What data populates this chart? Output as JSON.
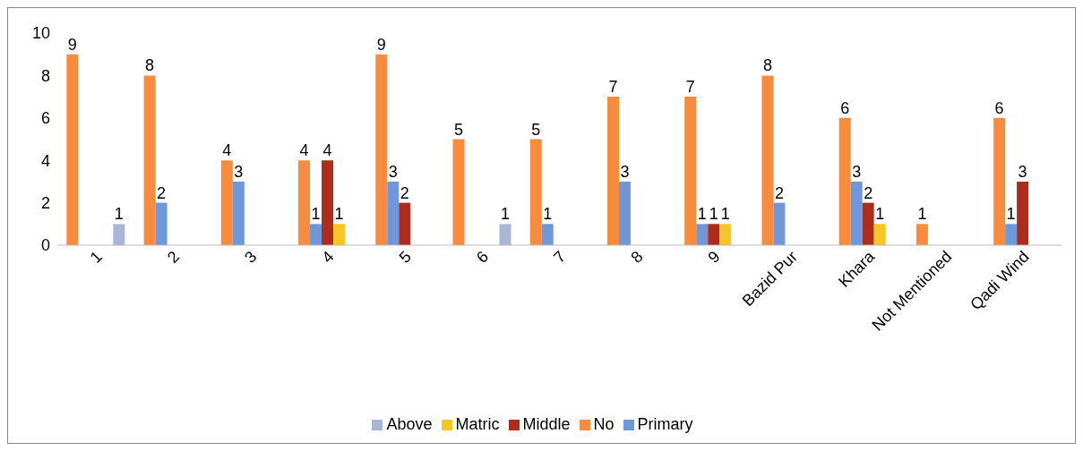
{
  "chart_data": {
    "type": "bar",
    "categories": [
      "1",
      "2",
      "3",
      "4",
      "5",
      "6",
      "7",
      "8",
      "9",
      "Bazid Pur",
      "Khara",
      "Not Mentioned",
      "Qadi Wind"
    ],
    "series": [
      {
        "name": "No",
        "color": "#f98b3c",
        "values": [
          9,
          8,
          4,
          4,
          9,
          5,
          5,
          7,
          7,
          8,
          6,
          1,
          6
        ]
      },
      {
        "name": "Primary",
        "color": "#6f97da",
        "values": [
          null,
          2,
          3,
          1,
          3,
          null,
          1,
          3,
          1,
          2,
          3,
          null,
          1
        ]
      },
      {
        "name": "Middle",
        "color": "#ae2c1c",
        "values": [
          null,
          null,
          null,
          4,
          2,
          null,
          null,
          null,
          1,
          null,
          2,
          null,
          3
        ]
      },
      {
        "name": "Matric",
        "color": "#f6c624",
        "values": [
          null,
          null,
          null,
          1,
          null,
          null,
          null,
          null,
          1,
          null,
          1,
          null,
          null
        ]
      },
      {
        "name": "Above",
        "color": "#aab6d6",
        "values": [
          1,
          null,
          null,
          null,
          null,
          1,
          null,
          null,
          null,
          null,
          null,
          null,
          null
        ]
      }
    ],
    "ylim": [
      0,
      10
    ],
    "yticks": [
      0,
      2,
      4,
      6,
      8,
      10
    ],
    "grid": false,
    "legend": "bottom",
    "data_labels": true
  }
}
